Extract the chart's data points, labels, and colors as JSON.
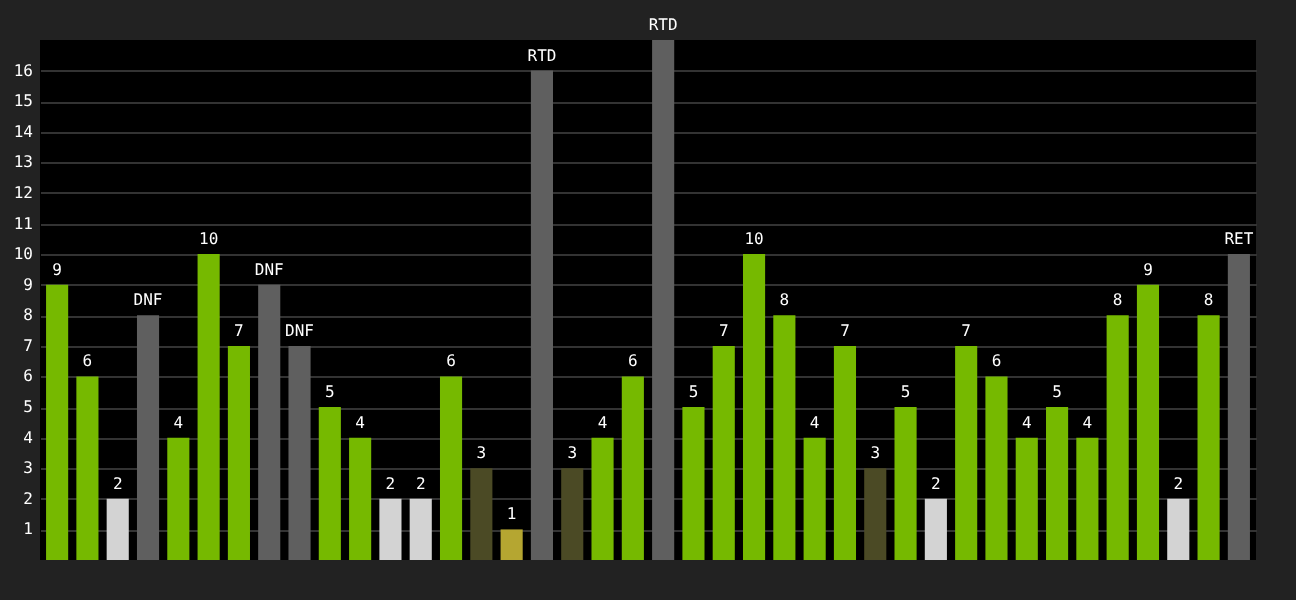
{
  "chart_data": {
    "type": "bar",
    "categories": [
      null,
      null,
      null,
      null,
      null,
      null,
      null,
      null,
      null,
      null,
      null,
      null,
      null,
      null,
      null,
      null,
      null,
      null,
      null,
      null,
      null,
      null,
      null,
      null,
      null,
      null,
      null,
      null,
      null,
      null,
      null,
      null,
      null,
      null,
      null,
      null,
      null,
      null,
      null,
      null
    ],
    "values": [
      9,
      6,
      2,
      8,
      4,
      10,
      7,
      9,
      7,
      5,
      4,
      2,
      2,
      6,
      3,
      1,
      16,
      3,
      4,
      6,
      17,
      5,
      7,
      10,
      8,
      4,
      7,
      3,
      5,
      2,
      7,
      6,
      4,
      5,
      4,
      8,
      9,
      2,
      8,
      10
    ],
    "colors": [
      "#76b900",
      "#76b900",
      "#d3d3d3",
      "#5f5f5f",
      "#76b900",
      "#76b900",
      "#76b900",
      "#5f5f5f",
      "#5f5f5f",
      "#76b900",
      "#76b900",
      "#d3d3d3",
      "#d3d3d3",
      "#76b900",
      "#4b4a25",
      "#b5a631",
      "#5f5f5f",
      "#4b4a25",
      "#76b900",
      "#76b900",
      "#5f5f5f",
      "#76b900",
      "#76b900",
      "#76b900",
      "#76b900",
      "#76b900",
      "#76b900",
      "#4b4a25",
      "#76b900",
      "#d3d3d3",
      "#76b900",
      "#76b900",
      "#76b900",
      "#76b900",
      "#76b900",
      "#76b900",
      "#76b900",
      "#d3d3d3",
      "#76b900",
      "#5f5f5f"
    ],
    "value_labels": [
      "9",
      "6",
      "2",
      "DNF",
      "4",
      "10",
      "7",
      "DNF",
      "DNF",
      "5",
      "4",
      "2",
      "2",
      "6",
      "3",
      "1",
      "RTD",
      "3",
      "4",
      "6",
      "RTD",
      "5",
      "7",
      "10",
      "8",
      "4",
      "7",
      "3",
      "5",
      "2",
      "7",
      "6",
      "4",
      "5",
      "4",
      "8",
      "9",
      "2",
      "8",
      "RET"
    ],
    "ylim": [
      0,
      17
    ],
    "yticks": [
      1,
      2,
      3,
      4,
      5,
      6,
      7,
      8,
      9,
      10,
      11,
      12,
      13,
      14,
      15,
      16
    ],
    "grid": "y"
  }
}
